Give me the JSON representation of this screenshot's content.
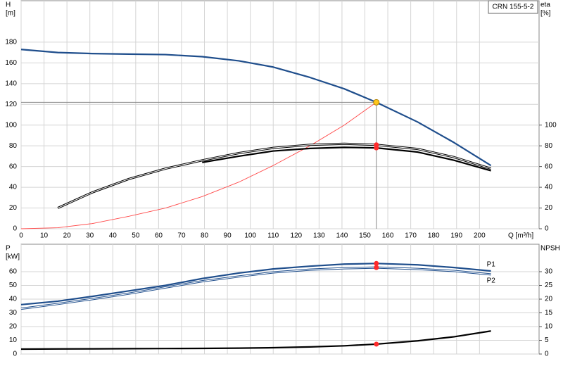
{
  "chart_data": [
    {
      "type": "line",
      "model": "CRN 155-5-2",
      "xlabel": "Q [m³/h]",
      "ylabel": "H",
      "yunit": "[m]",
      "y2label": "eta",
      "y2unit": "[%]",
      "x": [
        0,
        16,
        31,
        47,
        63,
        79,
        95,
        110,
        126,
        141,
        155,
        173,
        189,
        205
      ],
      "xlim": [
        0,
        226
      ],
      "xticks": [
        0,
        10,
        20,
        30,
        40,
        50,
        60,
        70,
        80,
        90,
        100,
        110,
        120,
        130,
        140,
        150,
        160,
        170,
        180,
        190,
        200
      ],
      "xtick_labels": true,
      "ylim": [
        0,
        220
      ],
      "yticks": [
        0,
        20,
        40,
        60,
        80,
        100,
        120,
        140,
        160,
        180
      ],
      "y2lim": [
        0,
        220
      ],
      "y2ticks": [
        0,
        20,
        40,
        60,
        80,
        100
      ],
      "grid": true,
      "marker_x": 155,
      "marker_color": "#ff2a2a",
      "operating_point": {
        "x": 155,
        "y": 122,
        "color": "#ffc61a"
      },
      "series": [
        {
          "color": "#1f4e8c",
          "style": "thick",
          "values": [
            173,
            170,
            169,
            168.5,
            168,
            166,
            162,
            156,
            146,
            135,
            122,
            103,
            83,
            61
          ]
        },
        {
          "color": "#ff4a4a",
          "style": "thin",
          "values": [
            0,
            1,
            5,
            12,
            20,
            31,
            45,
            61,
            80,
            100,
            122,
            null,
            null,
            null
          ]
        },
        {
          "color": "#000000",
          "style": "outlined",
          "axis": "y2",
          "marker": true,
          "values": [
            null,
            20,
            35,
            48,
            58,
            66,
            73,
            78,
            81,
            82,
            81,
            77,
            69,
            58
          ]
        },
        {
          "color": "#000000",
          "style": "thick",
          "axis": "y2",
          "marker": true,
          "values": [
            null,
            null,
            null,
            null,
            null,
            64,
            70,
            75,
            77.5,
            78.5,
            78,
            74,
            66,
            56
          ]
        }
      ]
    },
    {
      "type": "line",
      "ylabel": "P",
      "yunit": "[kW]",
      "y2label": "NPSH",
      "x": [
        0,
        16,
        31,
        47,
        63,
        79,
        95,
        110,
        126,
        141,
        155,
        173,
        189,
        205
      ],
      "xlim": [
        0,
        226
      ],
      "xticks": [
        0,
        10,
        20,
        30,
        40,
        50,
        60,
        70,
        80,
        90,
        100,
        110,
        120,
        130,
        140,
        150,
        160,
        170,
        180,
        190,
        200
      ],
      "xtick_labels": false,
      "ylim": [
        0,
        80
      ],
      "yticks": [
        0,
        10,
        20,
        30,
        40,
        50,
        60
      ],
      "y2lim": [
        0,
        40
      ],
      "y2ticks": [
        0,
        5,
        10,
        15,
        20,
        25,
        30
      ],
      "grid": true,
      "marker_x": 155,
      "marker_color": "#ff2a2a",
      "series": [
        {
          "name": "P1",
          "color": "#1f4e8c",
          "style": "thick",
          "marker": true,
          "label_side": "above",
          "values": [
            36,
            38.5,
            42,
            46,
            50,
            55,
            59,
            62,
            64,
            65.5,
            66,
            65,
            63,
            60.5
          ]
        },
        {
          "name": "P2",
          "color": "#1f4e8c",
          "style": "outlined",
          "marker": true,
          "label_side": "below",
          "values": [
            33,
            36.5,
            40,
            44,
            48.5,
            53,
            56.5,
            59.5,
            61.5,
            62.5,
            63,
            62,
            60.5,
            58
          ]
        },
        {
          "color": "#000000",
          "style": "thick",
          "axis": "y2",
          "marker": true,
          "values": [
            1.8,
            1.85,
            1.9,
            1.95,
            2,
            2.05,
            2.15,
            2.3,
            2.6,
            3,
            3.6,
            4.8,
            6.3,
            8.4
          ]
        }
      ]
    }
  ]
}
